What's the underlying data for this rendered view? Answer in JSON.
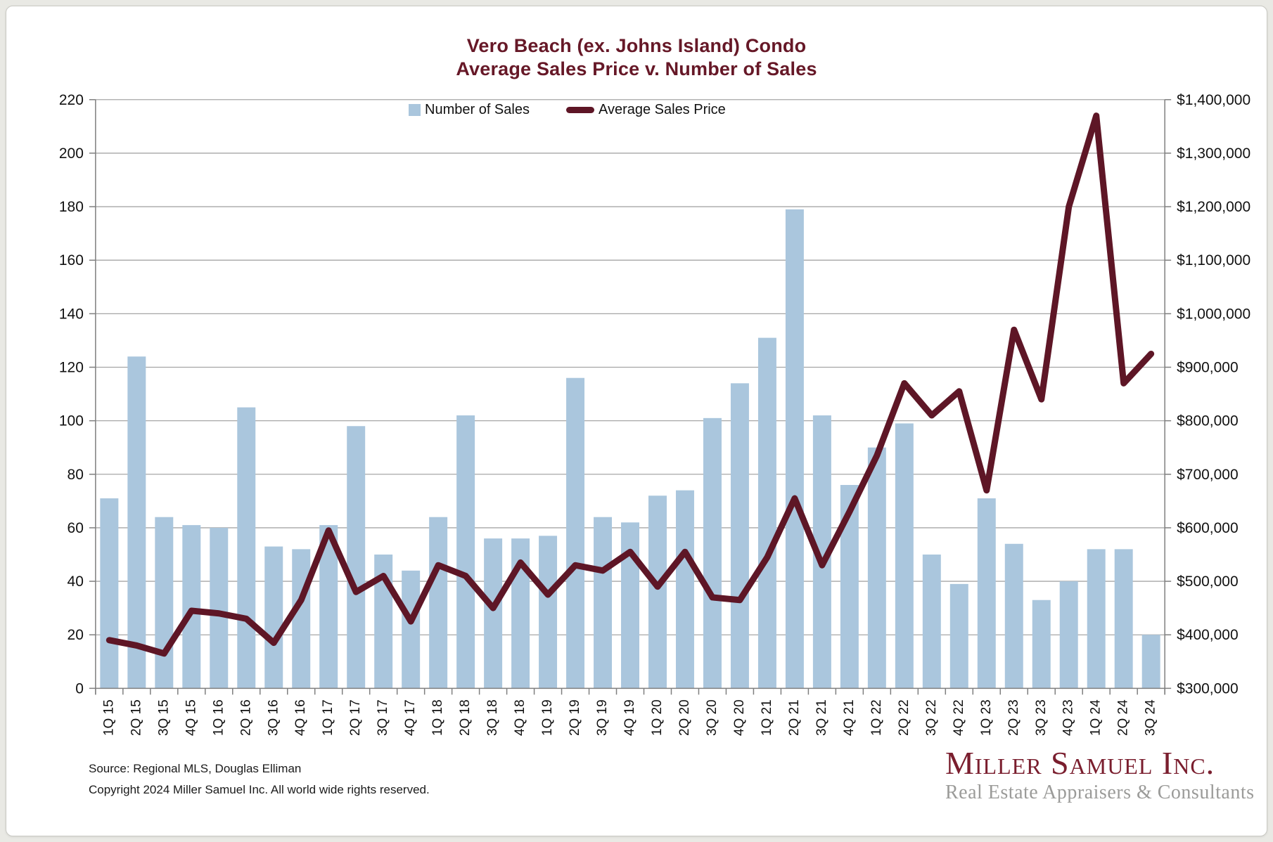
{
  "title": {
    "line1": "Vero Beach (ex. Johns Island) Condo",
    "line2": "Average Sales Price v. Number of Sales"
  },
  "legend": {
    "bars_label": "Number of Sales",
    "line_label": "Average Sales Price"
  },
  "footer": {
    "source": "Source: Regional MLS, Douglas Elliman",
    "copyright": "Copyright 2024 Miller Samuel Inc.  All world wide rights reserved."
  },
  "logo": {
    "name": "Miller Samuel Inc.",
    "tagline": "Real Estate Appraisers & Consultants"
  },
  "colors": {
    "bar": "#aac6dd",
    "line": "#5e1626",
    "title": "#661827",
    "grid": "#a6a6a6",
    "axis": "#7f7f7f",
    "text": "#111111"
  },
  "chart_data": {
    "type": "bar+line",
    "title": "Vero Beach (ex. Johns Island) Condo Average Sales Price v. Number of Sales",
    "categories": [
      "1Q 15",
      "2Q 15",
      "3Q 15",
      "4Q 15",
      "1Q 16",
      "2Q 16",
      "3Q 16",
      "4Q 16",
      "1Q 17",
      "2Q 17",
      "3Q 17",
      "4Q 17",
      "1Q 18",
      "2Q 18",
      "3Q 18",
      "4Q 18",
      "1Q 19",
      "2Q 19",
      "3Q 19",
      "4Q 19",
      "1Q 20",
      "2Q 20",
      "3Q 20",
      "4Q 20",
      "1Q 21",
      "2Q 21",
      "3Q 21",
      "4Q 21",
      "1Q 22",
      "2Q 22",
      "3Q 22",
      "4Q 22",
      "1Q 23",
      "2Q 23",
      "3Q 23",
      "4Q 23",
      "1Q 24",
      "2Q 24",
      "3Q 24"
    ],
    "series": [
      {
        "name": "Number of Sales",
        "type": "bar",
        "axis": "left",
        "values": [
          71,
          124,
          64,
          61,
          60,
          105,
          53,
          52,
          61,
          98,
          50,
          44,
          64,
          102,
          56,
          56,
          57,
          116,
          64,
          62,
          72,
          74,
          101,
          114,
          131,
          179,
          102,
          76,
          90,
          99,
          50,
          39,
          71,
          54,
          33,
          40,
          52,
          52,
          20
        ]
      },
      {
        "name": "Average Sales Price",
        "type": "line",
        "axis": "right",
        "values": [
          390000,
          380000,
          365000,
          445000,
          440000,
          430000,
          385000,
          465000,
          595000,
          480000,
          510000,
          425000,
          530000,
          510000,
          450000,
          535000,
          475000,
          530000,
          520000,
          555000,
          490000,
          555000,
          470000,
          465000,
          545000,
          655000,
          530000,
          630000,
          735000,
          870000,
          810000,
          855000,
          670000,
          970000,
          840000,
          1200000,
          1370000,
          870000,
          925000
        ]
      }
    ],
    "left_axis": {
      "min": 0,
      "max": 220,
      "step": 20
    },
    "right_axis": {
      "min": 300000,
      "max": 1400000,
      "step": 100000,
      "format": "$#,##0"
    },
    "grid": true,
    "legend_position": "top-center"
  }
}
